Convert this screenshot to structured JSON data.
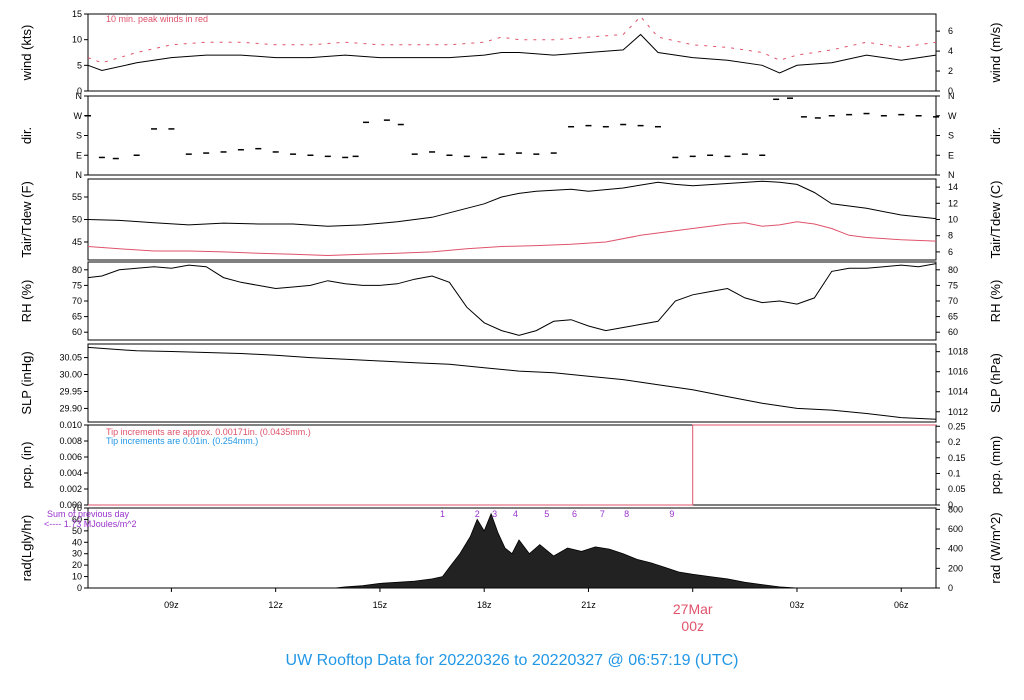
{
  "colors": {
    "red": "#DF536B",
    "blue": "#2297E6",
    "purple": "#9932CC",
    "black": "#000000"
  },
  "title": "UW Rooftop Data for 20220326  to  20220327 @ 06:57:19  (UTC)",
  "time_axis": {
    "range_hours": [
      6.6,
      31.0
    ],
    "ticks": [
      {
        "h": 9,
        "label": "09z"
      },
      {
        "h": 12,
        "label": "12z"
      },
      {
        "h": 15,
        "label": "15z"
      },
      {
        "h": 18,
        "label": "18z"
      },
      {
        "h": 21,
        "label": "21z"
      },
      {
        "h": 27,
        "label": "03z"
      },
      {
        "h": 30,
        "label": "06z"
      }
    ],
    "midnight": {
      "h": 24,
      "date_label": "27Mar",
      "time_label": "00z"
    }
  },
  "chart_data": [
    {
      "type": "line",
      "id": "wind",
      "ylabel": "wind (kts)",
      "ylabel_right": "wind (m/s)",
      "ylim": [
        0,
        15
      ],
      "yticks": [
        0,
        5,
        10,
        15
      ],
      "right_ticks": [
        {
          "v": 0,
          "label": "0"
        },
        {
          "v": 3.888,
          "label": "2"
        },
        {
          "v": 7.776,
          "label": "4"
        },
        {
          "v": 11.664,
          "label": "6"
        }
      ],
      "annotation": "10 min. peak winds in red",
      "series": [
        {
          "x": [
            6.6,
            7.0,
            8.0,
            9.0,
            10.0,
            11.0,
            12.0,
            13.0,
            14.0,
            15.0,
            16.0,
            17.0,
            18.0,
            18.5,
            19.0,
            20.0,
            21.0,
            22.0,
            22.5,
            23.0,
            24.0,
            25.0,
            26.0,
            26.5,
            27.0,
            28.0,
            29.0,
            30.0,
            31.0
          ],
          "y": [
            5.0,
            4.0,
            5.5,
            6.5,
            7.0,
            7.0,
            6.5,
            6.5,
            7.0,
            6.5,
            6.5,
            6.5,
            7.0,
            7.5,
            7.5,
            7.0,
            7.5,
            8.0,
            11.0,
            7.5,
            6.5,
            6.0,
            5.0,
            3.5,
            5.0,
            5.5,
            7.0,
            6.0,
            7.0
          ]
        },
        {
          "name": "10 min. peak winds",
          "x": [
            6.6,
            7.0,
            8.0,
            9.0,
            10.0,
            11.0,
            12.0,
            13.0,
            14.0,
            15.0,
            16.0,
            17.0,
            18.0,
            18.5,
            19.0,
            20.0,
            21.0,
            22.0,
            22.5,
            23.0,
            24.0,
            25.0,
            26.0,
            26.5,
            27.0,
            28.0,
            29.0,
            30.0,
            31.0
          ],
          "y": [
            6.5,
            5.5,
            7.5,
            9.0,
            9.5,
            9.5,
            9.0,
            9.0,
            9.5,
            9.0,
            9.0,
            9.0,
            9.5,
            10.5,
            10.0,
            10.0,
            10.5,
            11.0,
            14.5,
            10.5,
            9.0,
            8.5,
            7.5,
            6.0,
            7.0,
            8.0,
            9.5,
            8.5,
            9.5
          ]
        }
      ]
    },
    {
      "type": "scatter",
      "id": "dir",
      "ylabel": "dir.",
      "ylabel_right": "dir.",
      "ylim": [
        0,
        360
      ],
      "yticks": [
        0,
        90,
        180,
        270,
        360
      ],
      "ytick_labels": [
        "N",
        "E",
        "S",
        "W",
        "N"
      ],
      "series": [
        {
          "x": [
            6.6,
            7.0,
            7.4,
            8.0,
            8.5,
            9.0,
            9.5,
            10.0,
            10.5,
            11.0,
            11.5,
            12.0,
            12.5,
            13.0,
            13.5,
            14.0,
            14.3,
            14.6,
            15.2,
            15.6,
            16.0,
            16.5,
            17.0,
            17.5,
            18.0,
            18.5,
            19.0,
            19.5,
            20.0,
            20.5,
            21.0,
            21.5,
            22.0,
            22.5,
            23.0,
            23.5,
            24.0,
            24.5,
            25.0,
            25.5,
            26.0,
            26.4,
            26.8,
            27.2,
            27.6,
            28.0,
            28.5,
            29.0,
            29.5,
            30.0,
            30.5,
            31.0
          ],
          "y": [
            270,
            80,
            75,
            90,
            210,
            210,
            95,
            100,
            105,
            115,
            120,
            105,
            95,
            90,
            85,
            80,
            85,
            240,
            250,
            230,
            95,
            105,
            90,
            85,
            80,
            95,
            100,
            95,
            100,
            220,
            225,
            220,
            230,
            225,
            220,
            80,
            85,
            90,
            85,
            95,
            90,
            345,
            350,
            265,
            260,
            270,
            275,
            280,
            270,
            275,
            270,
            265
          ]
        }
      ]
    },
    {
      "type": "line",
      "id": "temp",
      "ylabel": "Tair/Tdew (F)",
      "ylabel_right": "Tair/Tdew (C)",
      "ylim": [
        41,
        59
      ],
      "yticks": [
        45,
        50,
        55
      ],
      "right_ticks": [
        {
          "v": 42.8,
          "label": "6"
        },
        {
          "v": 46.4,
          "label": "8"
        },
        {
          "v": 50,
          "label": "10"
        },
        {
          "v": 53.6,
          "label": "12"
        },
        {
          "v": 57.2,
          "label": "14"
        }
      ],
      "series": [
        {
          "name": "Tair",
          "x": [
            6.6,
            7.5,
            8.5,
            9.5,
            10.5,
            11.5,
            12.5,
            13.5,
            14.5,
            15.5,
            16.0,
            16.5,
            17.0,
            17.5,
            18.0,
            18.5,
            19.0,
            19.5,
            20.0,
            20.5,
            21.0,
            22.0,
            23.0,
            23.5,
            24.0,
            25.0,
            26.0,
            26.5,
            27.0,
            27.5,
            28.0,
            29.0,
            30.0,
            31.0
          ],
          "y": [
            50,
            49.8,
            49.3,
            48.8,
            49.2,
            49.0,
            49.0,
            48.5,
            48.8,
            49.5,
            50.0,
            50.5,
            51.5,
            52.5,
            53.5,
            55.0,
            55.8,
            56.3,
            56.5,
            56.7,
            56.3,
            57.0,
            58.3,
            57.8,
            57.5,
            58.0,
            58.5,
            58.3,
            57.8,
            56.0,
            53.5,
            52.5,
            51.0,
            50.2
          ]
        },
        {
          "name": "Tdew",
          "x": [
            6.6,
            7.5,
            8.5,
            9.5,
            10.5,
            11.5,
            12.5,
            13.5,
            14.5,
            15.5,
            16.5,
            17.5,
            18.5,
            19.5,
            20.5,
            21.5,
            22.5,
            23.5,
            24.0,
            24.5,
            25.0,
            25.5,
            26.0,
            26.5,
            27.0,
            27.5,
            28.0,
            28.5,
            29.0,
            30.0,
            31.0
          ],
          "y": [
            44.0,
            43.5,
            43.0,
            43.0,
            42.8,
            42.5,
            42.3,
            42.0,
            42.3,
            42.5,
            42.8,
            43.5,
            44.0,
            44.2,
            44.5,
            45.0,
            46.5,
            47.5,
            48.0,
            48.5,
            49.0,
            49.3,
            48.5,
            48.8,
            49.5,
            49.0,
            48.0,
            46.5,
            46.0,
            45.5,
            45.2
          ]
        }
      ]
    },
    {
      "type": "line",
      "id": "rh",
      "ylabel": "RH (%)",
      "ylabel_right": "RH (%)",
      "ylim": [
        57.5,
        82.5
      ],
      "yticks": [
        60,
        65,
        70,
        75,
        80
      ],
      "series": [
        {
          "x": [
            6.6,
            7.0,
            7.5,
            8.0,
            8.5,
            9.0,
            9.5,
            10.0,
            10.5,
            11.0,
            11.5,
            12.0,
            12.5,
            13.0,
            13.5,
            14.0,
            14.5,
            15.0,
            15.5,
            16.0,
            16.5,
            17.0,
            17.5,
            18.0,
            18.5,
            19.0,
            19.5,
            20.0,
            20.5,
            21.0,
            21.5,
            22.0,
            22.5,
            23.0,
            23.5,
            24.0,
            24.5,
            25.0,
            25.5,
            26.0,
            26.5,
            27.0,
            27.5,
            28.0,
            28.5,
            29.0,
            29.5,
            30.0,
            30.5,
            31.0
          ],
          "y": [
            77.5,
            78.0,
            80.0,
            80.5,
            81.0,
            80.5,
            81.5,
            81.0,
            77.5,
            76.0,
            75.0,
            74.0,
            74.5,
            75.0,
            76.5,
            75.5,
            75.0,
            75.0,
            75.5,
            77.0,
            78.0,
            76.0,
            68.0,
            63.0,
            60.5,
            59.0,
            60.5,
            63.5,
            64.0,
            62.0,
            60.5,
            61.5,
            62.5,
            63.5,
            70.0,
            72.0,
            73.0,
            74.0,
            71.0,
            69.5,
            70.0,
            69.0,
            71.0,
            79.5,
            80.5,
            80.5,
            81.0,
            81.5,
            81.0,
            82.0
          ]
        }
      ]
    },
    {
      "type": "line",
      "id": "slp",
      "ylabel": "SLP (inHg)",
      "ylabel_right": "SLP (hPa)",
      "ylim": [
        29.86,
        30.09
      ],
      "yticks": [
        29.9,
        29.95,
        30.0,
        30.05
      ],
      "ytick_labels": [
        "29.90",
        "29.95",
        "30.00",
        "30.05"
      ],
      "right_ticks": [
        {
          "v": 29.8902,
          "label": "1012"
        },
        {
          "v": 29.9493,
          "label": "1014"
        },
        {
          "v": 30.0083,
          "label": "1016"
        },
        {
          "v": 30.0674,
          "label": "1018"
        }
      ],
      "series": [
        {
          "x": [
            6.6,
            8.0,
            9.0,
            10.0,
            11.0,
            12.0,
            13.0,
            14.0,
            15.0,
            16.0,
            17.0,
            18.0,
            19.0,
            20.0,
            21.0,
            22.0,
            23.0,
            24.0,
            25.0,
            26.0,
            27.0,
            28.0,
            29.0,
            30.0,
            31.0
          ],
          "y": [
            30.08,
            30.07,
            30.068,
            30.065,
            30.062,
            30.057,
            30.05,
            30.045,
            30.04,
            30.035,
            30.03,
            30.02,
            30.01,
            30.005,
            29.995,
            29.985,
            29.97,
            29.955,
            29.935,
            29.915,
            29.9,
            29.895,
            29.885,
            29.873,
            29.868
          ]
        }
      ]
    },
    {
      "type": "line",
      "id": "pcp",
      "ylabel": "pcp. (in)",
      "ylabel_right": "pcp. (mm)",
      "ylim": [
        0,
        0.01
      ],
      "yticks": [
        0,
        0.002,
        0.004,
        0.006,
        0.008,
        0.01
      ],
      "ytick_labels": [
        "0.000",
        "0.002",
        "0.004",
        "0.006",
        "0.008",
        "0.010"
      ],
      "right_ticks": [
        {
          "v": 0,
          "label": "0"
        },
        {
          "v": 0.001969,
          "label": "0.05"
        },
        {
          "v": 0.003937,
          "label": "0.1"
        },
        {
          "v": 0.005906,
          "label": "0.15"
        },
        {
          "v": 0.007874,
          "label": "0.2"
        },
        {
          "v": 0.009843,
          "label": "0.25"
        }
      ],
      "notes": [
        "Tip increments are approx. 0.00171in. (0.0435mm.)",
        "Tip increments are 0.01in. (0.254mm.)"
      ],
      "series": [
        {
          "x": [
            6.6,
            24.0,
            24.0,
            31.0
          ],
          "y": [
            0,
            0,
            0.01,
            0.01
          ]
        }
      ]
    },
    {
      "type": "area",
      "id": "rad",
      "ylabel": "rad(Lgly/hr)",
      "ylabel_right": "rad (W/m^2)",
      "ylim": [
        0,
        70
      ],
      "yticks": [
        0,
        10,
        20,
        30,
        40,
        50,
        60,
        70
      ],
      "right_ticks": [
        {
          "v": 0,
          "label": "0"
        },
        {
          "v": 17.2,
          "label": "200"
        },
        {
          "v": 34.4,
          "label": "400"
        },
        {
          "v": 51.6,
          "label": "600"
        },
        {
          "v": 68.8,
          "label": "800"
        }
      ],
      "annotation_lines": [
        "Sum of previous day",
        "<---- 1.73 MJoules/m^2"
      ],
      "hour_marks": [
        {
          "h": 16.8,
          "label": "1"
        },
        {
          "h": 17.8,
          "label": "2"
        },
        {
          "h": 18.3,
          "label": "3"
        },
        {
          "h": 18.9,
          "label": "4"
        },
        {
          "h": 19.8,
          "label": "5"
        },
        {
          "h": 20.6,
          "label": "6"
        },
        {
          "h": 21.4,
          "label": "7"
        },
        {
          "h": 22.1,
          "label": "8"
        },
        {
          "h": 23.4,
          "label": "9"
        }
      ],
      "series": [
        {
          "x": [
            13.7,
            14.0,
            14.5,
            15.0,
            15.5,
            16.0,
            16.5,
            16.8,
            17.0,
            17.3,
            17.6,
            17.8,
            18.0,
            18.2,
            18.4,
            18.6,
            18.8,
            19.0,
            19.3,
            19.6,
            20.0,
            20.4,
            20.8,
            21.2,
            21.6,
            22.0,
            22.4,
            22.8,
            23.2,
            23.6,
            24.0,
            24.5,
            25.0,
            25.5,
            26.0,
            26.5,
            27.0
          ],
          "y": [
            0,
            1,
            2,
            4,
            5,
            6,
            8,
            10,
            18,
            30,
            45,
            60,
            50,
            65,
            48,
            35,
            30,
            42,
            30,
            38,
            28,
            35,
            32,
            36,
            34,
            30,
            25,
            22,
            18,
            14,
            12,
            10,
            8,
            5,
            3,
            1,
            0
          ]
        }
      ]
    }
  ]
}
